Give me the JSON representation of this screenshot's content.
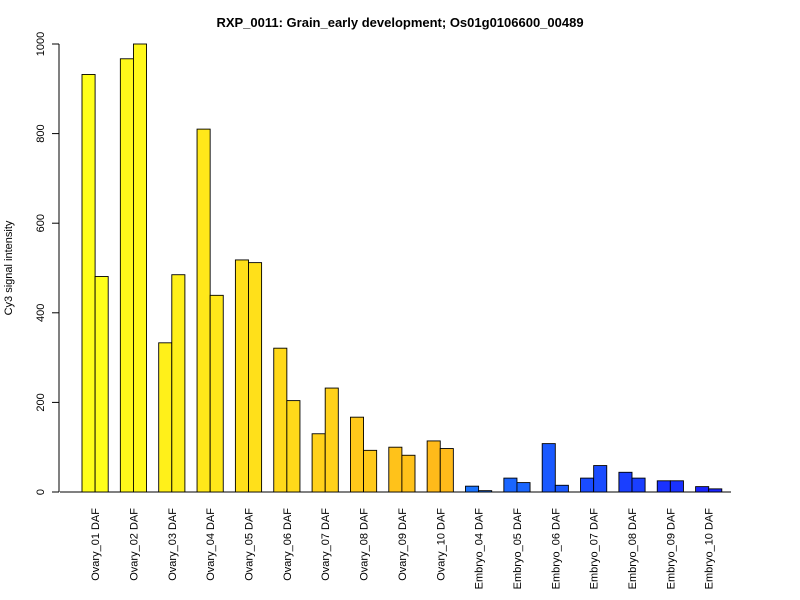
{
  "chart_data": {
    "type": "bar",
    "title": "RXP_0011: Grain_early development; Os01g0106600_00489",
    "xlabel": "",
    "ylabel": "Cy3 signal intensity",
    "ylim": [
      0,
      1000
    ],
    "yticks": [
      "0",
      "200",
      "400",
      "600",
      "800",
      "1000"
    ],
    "grid": false,
    "categories": [
      "Ovary_01 DAF",
      "Ovary_02 DAF",
      "Ovary_03 DAF",
      "Ovary_04 DAF",
      "Ovary_05 DAF",
      "Ovary_06 DAF",
      "Ovary_07 DAF",
      "Ovary_08 DAF",
      "Ovary_09 DAF",
      "Ovary_10 DAF",
      "Embryo_04 DAF",
      "Embryo_05 DAF",
      "Embryo_06 DAF",
      "Embryo_07 DAF",
      "Embryo_08 DAF",
      "Embryo_09 DAF",
      "Embryo_10 DAF"
    ],
    "series": [
      {
        "values": [
          932,
          967,
          333,
          810,
          518,
          321,
          130,
          167,
          100,
          114,
          13,
          31,
          108,
          31,
          44,
          25,
          12
        ]
      },
      {
        "values": [
          481,
          1000,
          485,
          439,
          512,
          204,
          232,
          93,
          82,
          97,
          3,
          21,
          15,
          59,
          31,
          25,
          7
        ]
      }
    ],
    "bar_colors": [
      "#ffff1a",
      "#fff81a",
      "#fff01a",
      "#ffe81a",
      "#ffe01a",
      "#ffd91a",
      "#ffd11a",
      "#ffc91a",
      "#ffc21a",
      "#ffba1a",
      "#1a73ff",
      "#1a66ff",
      "#1a59ff",
      "#1a4cff",
      "#1a3fff",
      "#1a32ff",
      "#1a25ff"
    ]
  }
}
